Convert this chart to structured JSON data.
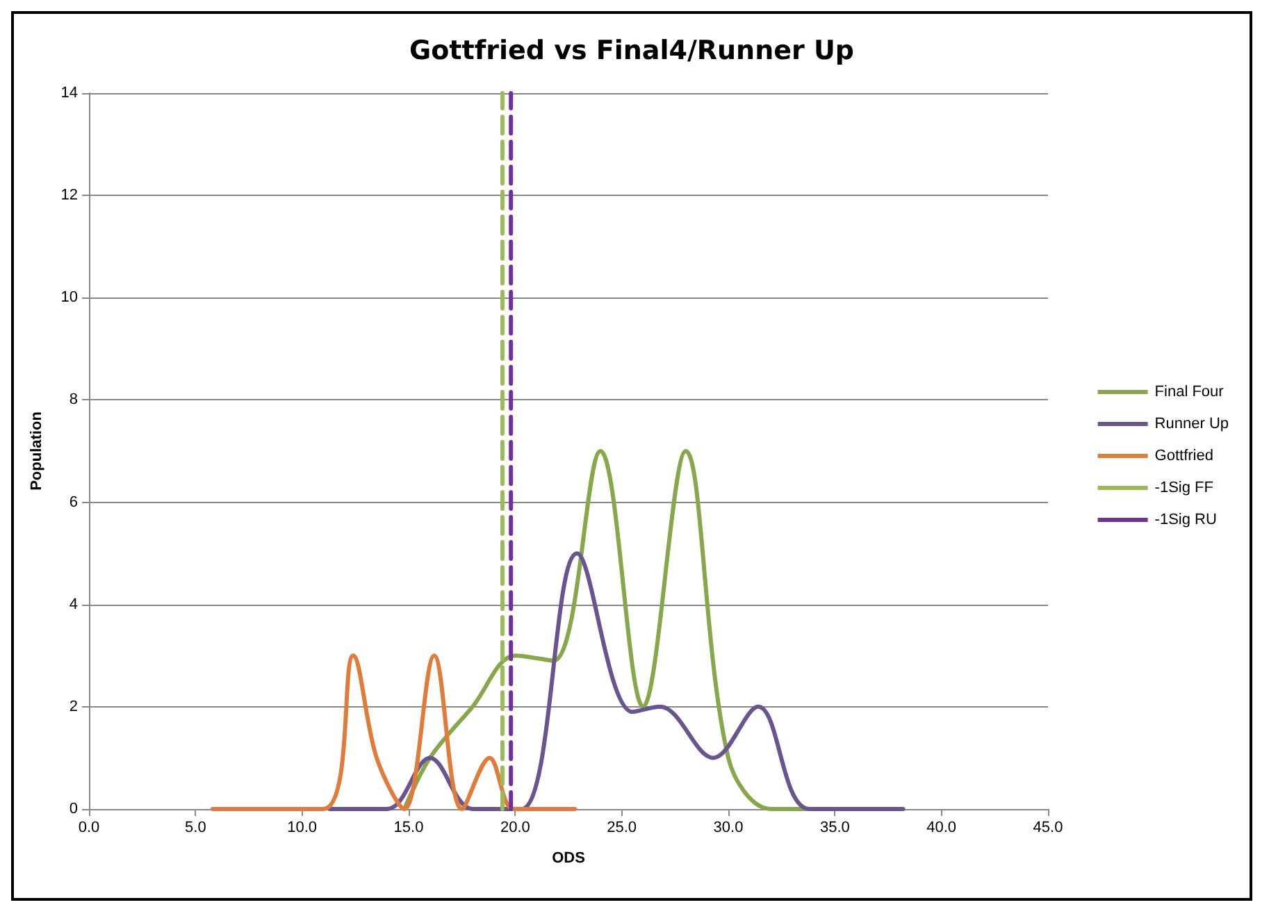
{
  "chart_data": {
    "type": "line",
    "title": "Gottfried vs Final4/Runner Up",
    "xlabel": "ODS",
    "ylabel": "Population",
    "xlim": [
      0,
      45
    ],
    "xticks": [
      {
        "value": 0,
        "label": "0.0"
      },
      {
        "value": 5,
        "label": "5.0"
      },
      {
        "value": 10,
        "label": "10.0"
      },
      {
        "value": 15,
        "label": "15.0"
      },
      {
        "value": 20,
        "label": "20.0"
      },
      {
        "value": 25,
        "label": "25.0"
      },
      {
        "value": 30,
        "label": "30.0"
      },
      {
        "value": 35,
        "label": "35.0"
      },
      {
        "value": 40,
        "label": "40.0"
      },
      {
        "value": 45,
        "label": "45.0"
      }
    ],
    "ylim": [
      0,
      14
    ],
    "yticks": [
      0,
      2,
      4,
      6,
      8,
      10,
      12,
      14
    ],
    "grid": "y",
    "legend": "right",
    "marker": "none",
    "series": [
      {
        "name": "Final Four",
        "color": "#86a84a",
        "x": [
          14.8,
          16,
          18,
          20,
          21.8,
          24,
          26,
          28,
          30,
          32,
          35.5
        ],
        "values": [
          0,
          1,
          2,
          3,
          2.9,
          7,
          2,
          7,
          1,
          0,
          0
        ]
      },
      {
        "name": "Runner Up",
        "color": "#6a5490",
        "x": [
          11.3,
          14,
          16,
          18,
          20.3,
          22.9,
          25.5,
          26.8,
          29.3,
          31.4,
          33.8,
          38.2
        ],
        "values": [
          0,
          0,
          1,
          0,
          0,
          5,
          1.9,
          2,
          1,
          2,
          0,
          0
        ]
      },
      {
        "name": "Gottfried",
        "color": "#e07b39",
        "x": [
          5.8,
          11,
          12.4,
          13.5,
          14.8,
          16.2,
          17.5,
          18.8,
          19.9,
          21,
          22.8
        ],
        "values": [
          0,
          0,
          3,
          1,
          0,
          3,
          0,
          1,
          0,
          0,
          0
        ]
      },
      {
        "name": "-1Sig FF",
        "color": "#9bbb59",
        "line_style": "dashed",
        "x": [
          19.4,
          19.4
        ],
        "values": [
          0,
          14
        ]
      },
      {
        "name": "-1Sig RU",
        "color": "#7030a0",
        "line_style": "dashed",
        "x": [
          19.8,
          19.8
        ],
        "values": [
          0,
          14
        ]
      }
    ]
  }
}
